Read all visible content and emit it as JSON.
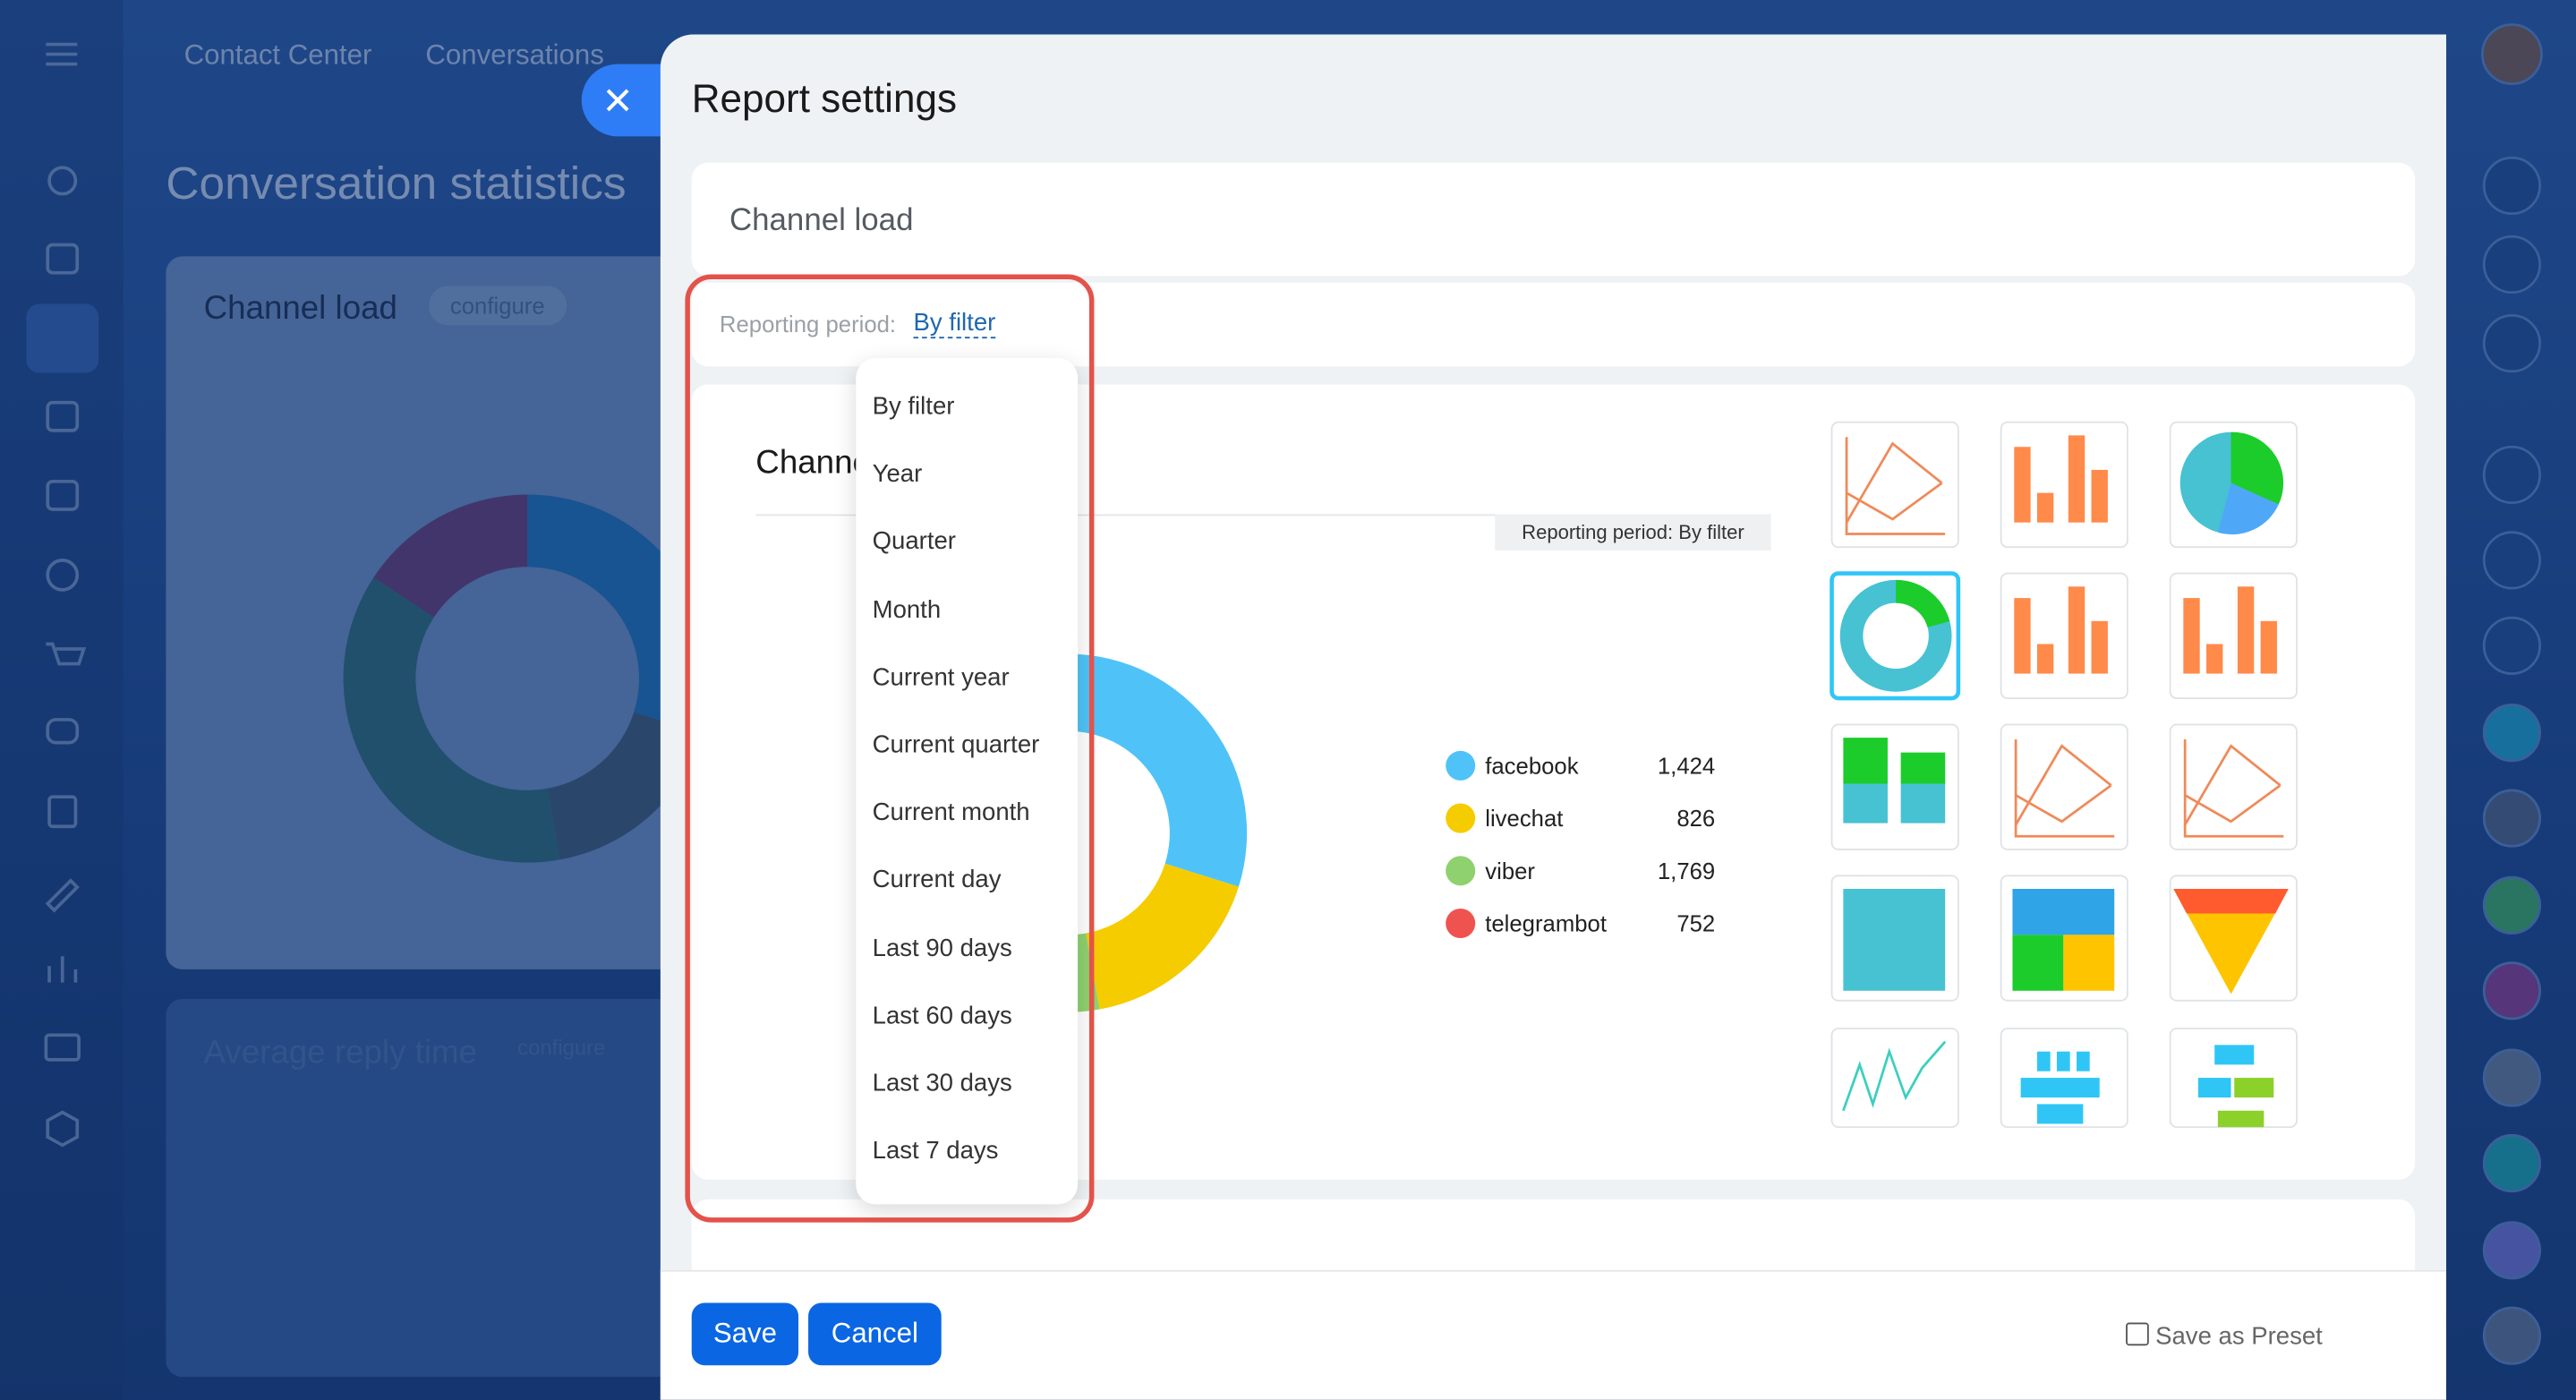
{
  "background": {
    "nav": [
      "Contact Center",
      "Conversations"
    ],
    "page_title": "Conversation statistics",
    "widget_title": "Channel load",
    "widget_button": "configure",
    "widget2_title": "Average reply time",
    "widget2_button": "configure"
  },
  "modal": {
    "title": "Report settings",
    "report_name": "Channel load",
    "period_label": "Reporting period:",
    "period_value": "By filter",
    "period_options": [
      "By filter",
      "Year",
      "Quarter",
      "Month",
      "Current year",
      "Current quarter",
      "Current month",
      "Current day",
      "Last 90 days",
      "Last 60 days",
      "Last 30 days",
      "Last 7 days"
    ],
    "preview_title": "Channel load",
    "preview_badge": "Reporting period: By filter",
    "save": "Save",
    "cancel": "Cancel",
    "preset": "Save as Preset"
  },
  "chart_data": {
    "type": "donut",
    "categories": [
      "facebook",
      "livechat",
      "viber",
      "telegrambot"
    ],
    "values": [
      1424,
      826,
      1769,
      752
    ],
    "value_labels": [
      "1,424",
      "826",
      "1,769",
      "752"
    ],
    "colors": [
      "#4fc3f7",
      "#f5cc00",
      "#8fd16f",
      "#ef5350"
    ],
    "background_colors": [
      "#1e6fb5",
      "#3f5a6e",
      "#2e6a72",
      "#6b3a6e"
    ]
  }
}
